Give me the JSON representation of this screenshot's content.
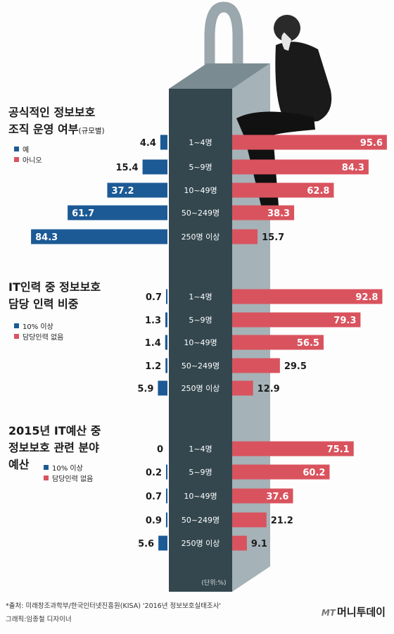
{
  "categories": [
    "1~4명",
    "5~9명",
    "10~49명",
    "50~249명",
    "250명 이상"
  ],
  "unit": "(단위:%)",
  "colors": {
    "blue": "#1c5a96",
    "red": "#d9535e",
    "pillar": "#34474f",
    "side": "#a5b3b8",
    "top": "#7a8c92"
  },
  "sections": [
    {
      "title_line1": "공식적인 정보보호",
      "title_line2": "조직 운영 여부",
      "title_suffix": "(규모별)",
      "legend_blue": "예",
      "legend_red": "아니오"
    },
    {
      "title_line1": "IT인력 중 정보보호",
      "title_line2": "담당 인력 비중",
      "legend_blue": "10% 이상",
      "legend_red": "담당인력 없음"
    },
    {
      "title_line1": "2015년 IT예산 중",
      "title_line2": "정보보호 관련 분야",
      "title_line3": "예산",
      "legend_blue": "10% 이상",
      "legend_red": "담당인력 없음"
    }
  ],
  "chart_data": [
    {
      "type": "bar",
      "title": "공식적인 정보보호 조직 운영 여부(규모별)",
      "categories": [
        "1~4명",
        "5~9명",
        "10~49명",
        "50~249명",
        "250명 이상"
      ],
      "series": [
        {
          "name": "예",
          "values": [
            4.4,
            15.4,
            37.2,
            61.7,
            84.3
          ]
        },
        {
          "name": "아니오",
          "values": [
            95.6,
            84.3,
            62.8,
            38.3,
            15.7
          ]
        }
      ]
    },
    {
      "type": "bar",
      "title": "IT인력 중 정보보호 담당 인력 비중",
      "categories": [
        "1~4명",
        "5~9명",
        "10~49명",
        "50~249명",
        "250명 이상"
      ],
      "series": [
        {
          "name": "10% 이상",
          "values": [
            0.7,
            1.3,
            1.4,
            1.2,
            5.9
          ]
        },
        {
          "name": "담당인력 없음",
          "values": [
            92.8,
            79.3,
            56.5,
            29.5,
            12.9
          ]
        }
      ]
    },
    {
      "type": "bar",
      "title": "2015년 IT예산 중 정보보호 관련 분야 예산",
      "categories": [
        "1~4명",
        "5~9명",
        "10~49명",
        "50~249명",
        "250명 이상"
      ],
      "series": [
        {
          "name": "10% 이상",
          "values": [
            0,
            0.2,
            0.7,
            0.9,
            5.6
          ]
        },
        {
          "name": "담당인력 없음",
          "values": [
            75.1,
            60.2,
            37.6,
            21.2,
            9.1
          ]
        }
      ]
    }
  ],
  "source": "*출처: 미래창조과학부/한국인터넷진흥원(KISA) '2016년 정보보호실태조사'",
  "credit": "그래픽:임종철 디자이너",
  "logo_prefix": "MT",
  "logo_text": "머니투데이"
}
